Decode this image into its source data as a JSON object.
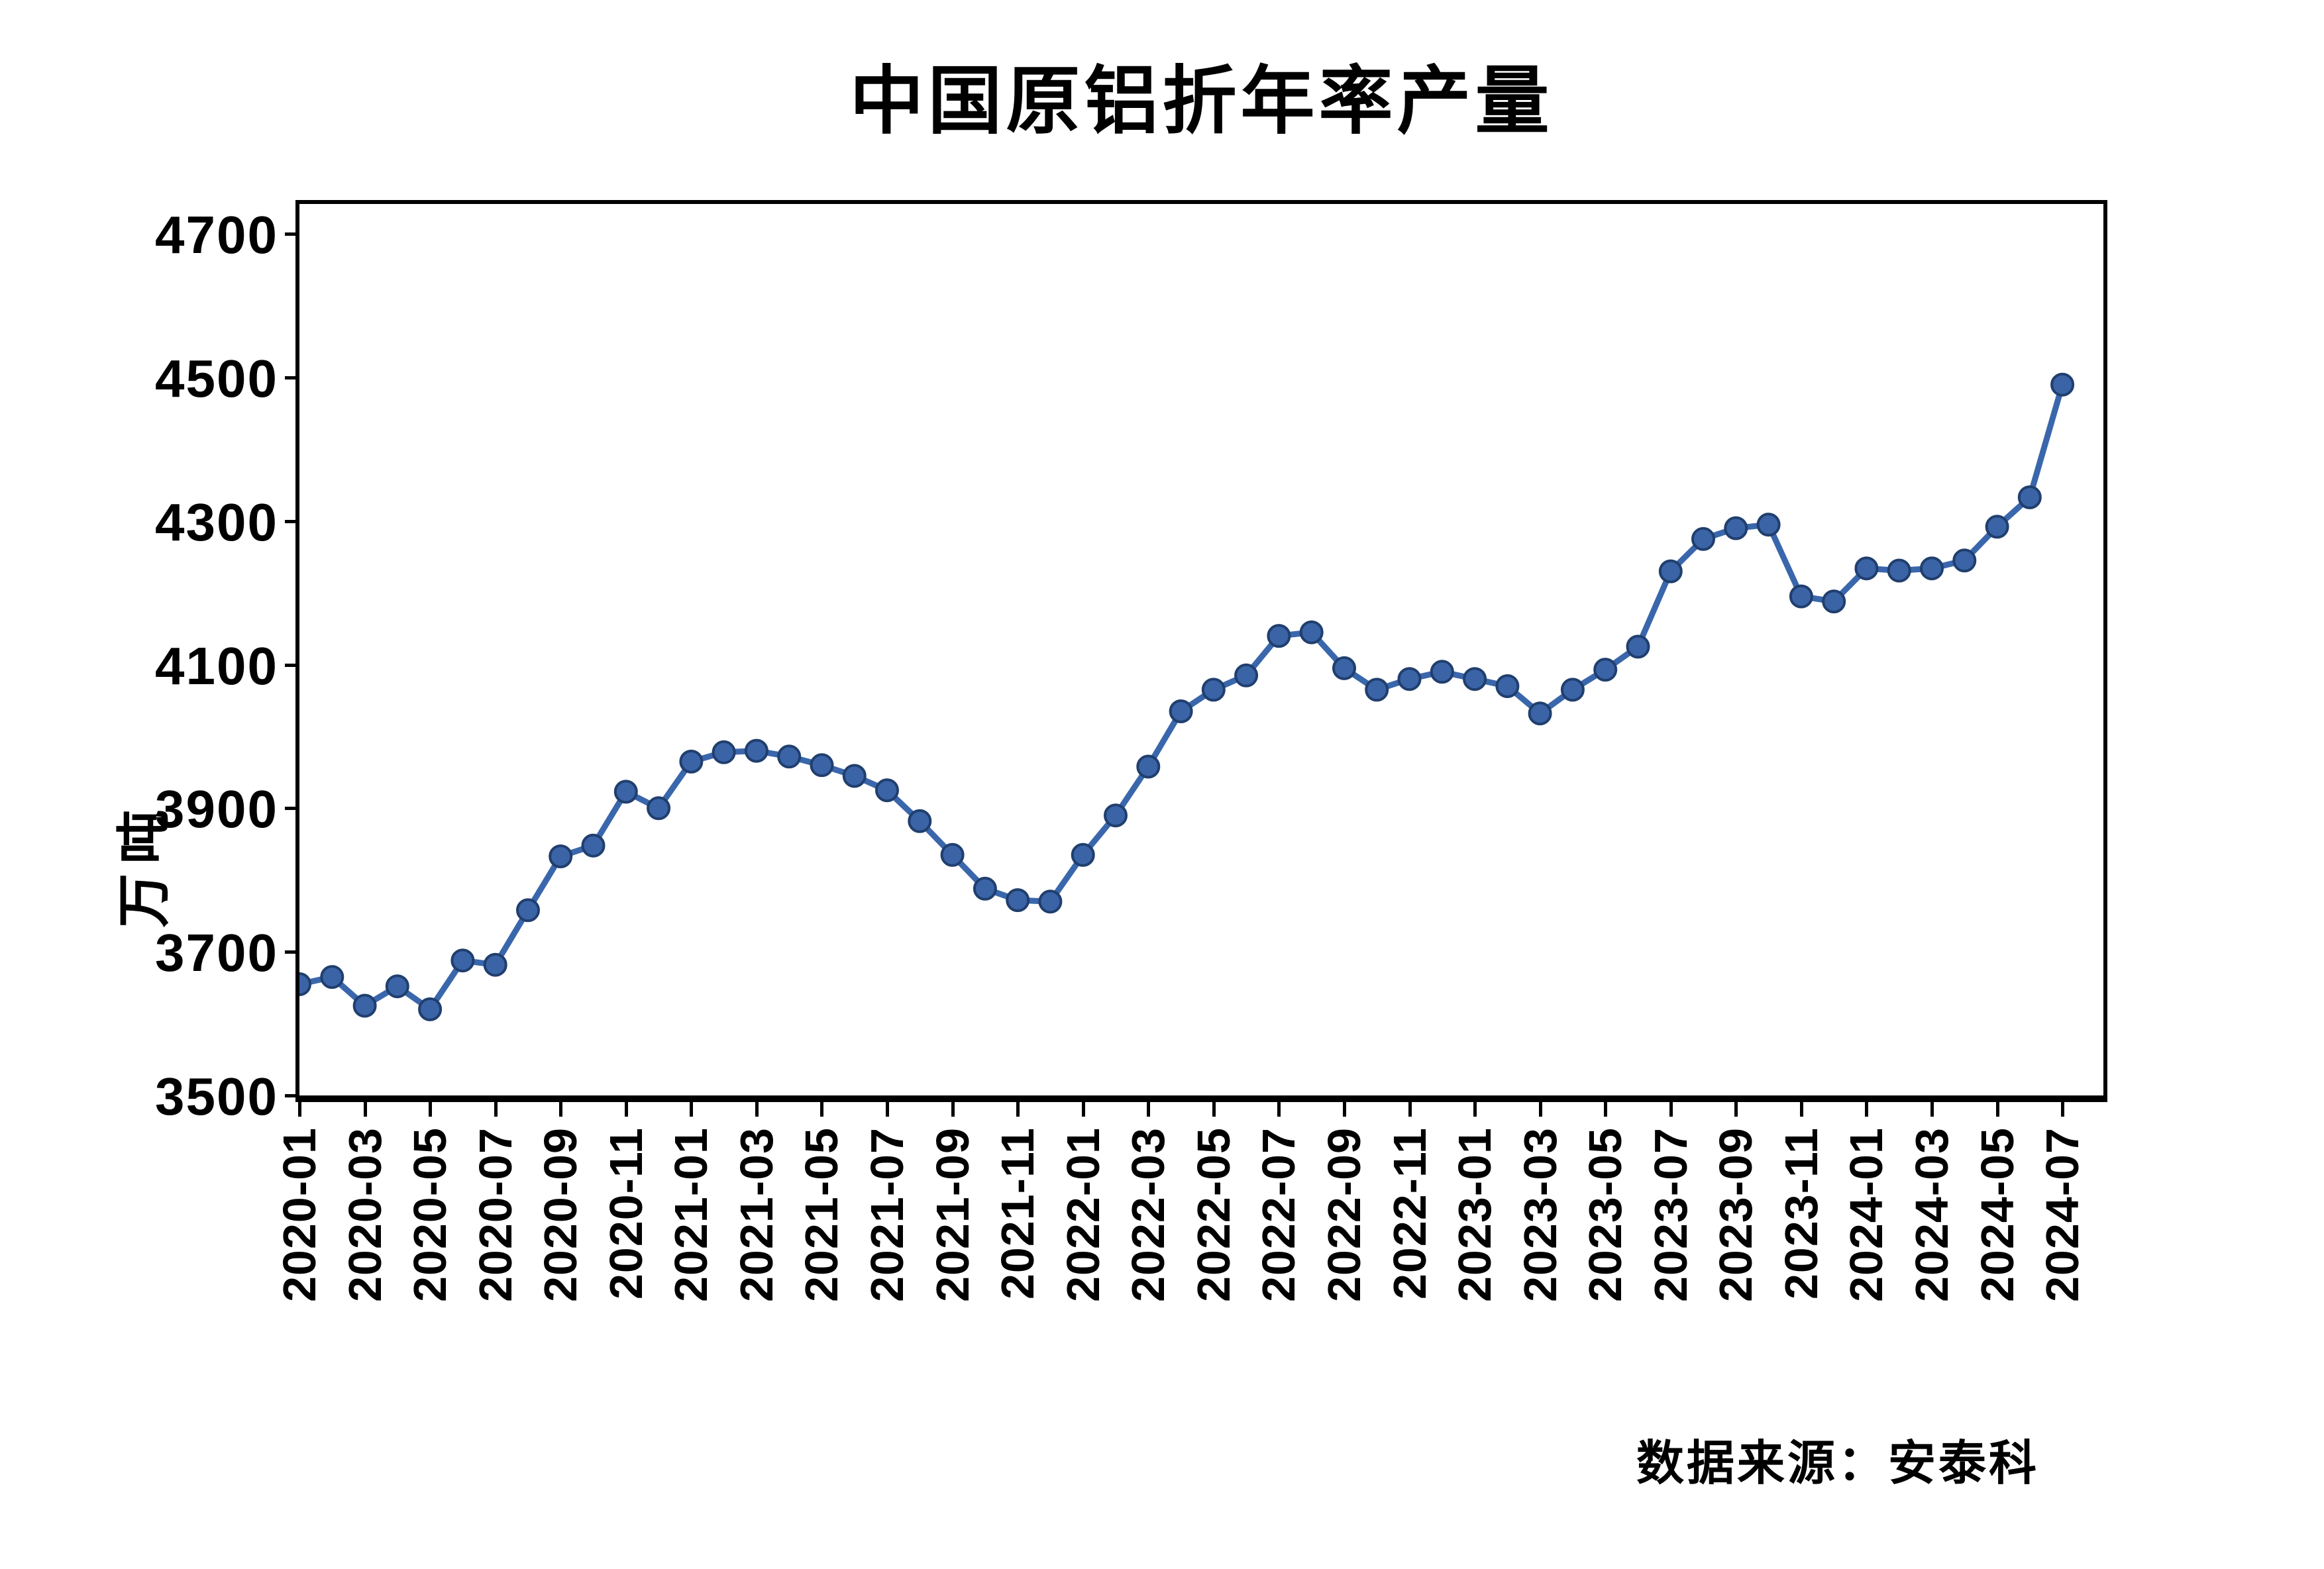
{
  "title": "中国原铝折年率产量",
  "y_axis": {
    "unit_label": "万吨",
    "tick_labels": [
      "4700",
      "4500",
      "4300",
      "4100",
      "3900",
      "3700",
      "3500"
    ],
    "min": 3500,
    "max": 4700
  },
  "x_axis": {
    "tick_labels": [
      "2020-01",
      "2020-03",
      "2020-05",
      "2020-07",
      "2020-09",
      "2020-11",
      "2021-01",
      "2021-03",
      "2021-05",
      "2021-07",
      "2021-09",
      "2021-11",
      "2022-01",
      "2022-03",
      "2022-05",
      "2022-07",
      "2022-09",
      "2022-11",
      "2023-01",
      "2023-03",
      "2023-05",
      "2023-07",
      "2023-09",
      "2023-11",
      "2024-01",
      "2024-03",
      "2024-05",
      "2024-07"
    ],
    "label_step": 2
  },
  "source_note": "数据来源：安泰科",
  "colors": {
    "line": "#3a67ac",
    "marker_fill": "#3b64a7",
    "marker_stroke": "#203f6e",
    "axis": "#000000",
    "background": "#ffffff"
  },
  "chart_data": {
    "type": "line",
    "title": "中国原铝折年率产量",
    "xlabel": "",
    "ylabel": "万吨",
    "ylim": [
      3500,
      4700
    ],
    "y_tick_interval": 200,
    "grid": false,
    "legend": false,
    "x": [
      "2020-01",
      "2020-02",
      "2020-03",
      "2020-04",
      "2020-05",
      "2020-06",
      "2020-07",
      "2020-08",
      "2020-09",
      "2020-10",
      "2020-11",
      "2020-12",
      "2021-01",
      "2021-02",
      "2021-03",
      "2021-04",
      "2021-05",
      "2021-06",
      "2021-07",
      "2021-08",
      "2021-09",
      "2021-10",
      "2021-11",
      "2021-12",
      "2022-01",
      "2022-02",
      "2022-03",
      "2022-04",
      "2022-05",
      "2022-06",
      "2022-07",
      "2022-08",
      "2022-09",
      "2022-10",
      "2022-11",
      "2022-12",
      "2023-01",
      "2023-02",
      "2023-03",
      "2023-04",
      "2023-05",
      "2023-06",
      "2023-07",
      "2023-08",
      "2023-09",
      "2023-10",
      "2023-11",
      "2023-12",
      "2024-01",
      "2024-02",
      "2024-03",
      "2024-04",
      "2024-05",
      "2024-06",
      "2024-07"
    ],
    "values": [
      3655,
      3665,
      3625,
      3652,
      3620,
      3688,
      3682,
      3758,
      3833,
      3848,
      3923,
      3900,
      3965,
      3978,
      3980,
      3972,
      3960,
      3945,
      3925,
      3882,
      3835,
      3788,
      3772,
      3770,
      3835,
      3890,
      3958,
      4035,
      4065,
      4085,
      4140,
      4145,
      4095,
      4065,
      4080,
      4090,
      4080,
      4070,
      4032,
      4065,
      4093,
      4125,
      4230,
      4275,
      4290,
      4295,
      4195,
      4188,
      4234,
      4231,
      4234,
      4245,
      4292,
      4333,
      4490
    ]
  }
}
